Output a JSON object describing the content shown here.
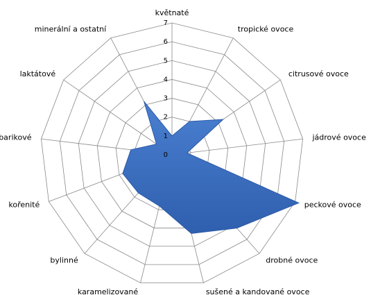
{
  "chart_data": {
    "type": "radar",
    "categories": [
      "květnaté",
      "tropické ovoce",
      "citrusové ovoce",
      "jádrové ovoce",
      "peckové ovoce",
      "drobné ovoce",
      "sušené a kandované ovoce",
      "karamelizované",
      "bylinné",
      "kořenité",
      "barikové",
      "laktátové",
      "minerální a ostatní"
    ],
    "values": [
      1,
      2,
      3.3,
      0.8,
      7.2,
      5.2,
      4.3,
      2.8,
      2.7,
      2.8,
      2.2,
      1,
      3.2
    ],
    "color": "#4a7fd0",
    "ylim": [
      0,
      7
    ],
    "yticks": [
      0,
      1,
      2,
      3,
      4,
      5,
      6,
      7
    ],
    "grid": true
  }
}
